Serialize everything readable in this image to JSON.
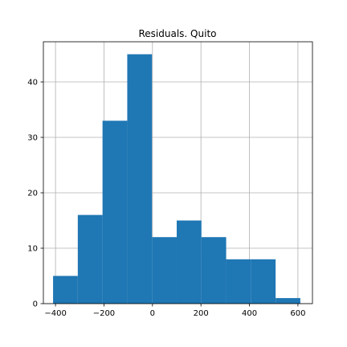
{
  "chart_data": {
    "type": "histogram",
    "title": "Residuals. Quito",
    "xlabel": "",
    "ylabel": "",
    "xlim": [
      -450,
      660
    ],
    "ylim": [
      0,
      47.25
    ],
    "grid": true,
    "color": "#1f77b4",
    "bins": [
      {
        "x0": -410,
        "x1": -308,
        "count": 5
      },
      {
        "x0": -308,
        "x1": -206,
        "count": 16
      },
      {
        "x0": -206,
        "x1": -104,
        "count": 33
      },
      {
        "x0": -104,
        "x1": -2,
        "count": 45
      },
      {
        "x0": -2,
        "x1": 100,
        "count": 12
      },
      {
        "x0": 100,
        "x1": 202,
        "count": 15
      },
      {
        "x0": 202,
        "x1": 304,
        "count": 12
      },
      {
        "x0": 304,
        "x1": 406,
        "count": 8
      },
      {
        "x0": 406,
        "x1": 508,
        "count": 8
      },
      {
        "x0": 508,
        "x1": 610,
        "count": 1
      }
    ],
    "xticks": [
      -400,
      -200,
      0,
      200,
      400,
      600
    ],
    "xtick_labels": [
      "−400",
      "−200",
      "0",
      "200",
      "400",
      "600"
    ],
    "yticks": [
      0,
      10,
      20,
      30,
      40
    ],
    "ytick_labels": [
      "0",
      "10",
      "20",
      "30",
      "40"
    ]
  }
}
